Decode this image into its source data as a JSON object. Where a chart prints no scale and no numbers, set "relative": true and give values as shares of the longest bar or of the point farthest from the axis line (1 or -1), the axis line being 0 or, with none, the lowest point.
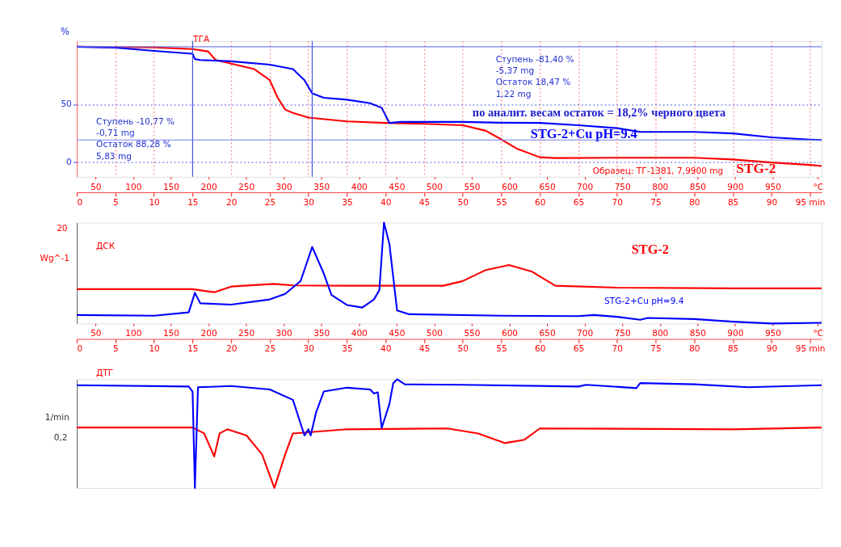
{
  "chart_data": [
    {
      "type": "line",
      "ylabel": "%",
      "xlim": [
        0,
        96.5
      ],
      "xticks": [
        0,
        5,
        10,
        15,
        20,
        25,
        30,
        35,
        40,
        45,
        50,
        55,
        60,
        65,
        70,
        75,
        80,
        85,
        90,
        {
          "value": 95,
          "label": "95 min"
        }
      ],
      "x2lim": [
        25,
        1015
      ],
      "x2ticks": [
        50,
        100,
        150,
        200,
        250,
        300,
        350,
        400,
        450,
        500,
        550,
        600,
        650,
        700,
        750,
        800,
        850,
        900,
        950,
        {
          "value": 1010,
          "label": "°C"
        }
      ],
      "ylim": [
        -13,
        105
      ],
      "yticks": [
        0,
        50
      ],
      "grid": true,
      "annotations": [
        "ТГА",
        "Ступень  -10,77 %\n              -0,71 mg\nОстаток   88,28 %\n              5,83 mg",
        "Ступень  -81,40 %\n              -5,37 mg\nОстаток   18,47 %\n              1,22 mg",
        "по аналит. весам остаток = 18,2% черного цвета",
        "Образец: ТГ-1381, 7,9900 mg"
      ],
      "ref_lines": [
        {
          "axis": "y",
          "value": 100,
          "color": "#7080f0"
        },
        {
          "axis": "x",
          "value": 15,
          "color": "#4050e0"
        },
        {
          "axis": "x",
          "value": 30.5,
          "color": "#4050e0"
        },
        {
          "axis": "y",
          "value": 19,
          "color": "#7080f0"
        }
      ],
      "series": [
        {
          "name": "STG-2",
          "color": "#ff0000",
          "x": [
            0,
            10,
            15,
            17,
            18,
            20,
            23,
            25,
            26,
            27,
            28,
            30,
            35,
            40,
            45,
            50,
            53,
            55,
            57,
            60,
            62,
            70,
            80,
            85,
            90,
            95,
            96.5
          ],
          "values": [
            100,
            99.5,
            98,
            96,
            88.5,
            85.4,
            80.6,
            71,
            56,
            45.4,
            42.5,
            38.5,
            35.2,
            33.8,
            33,
            31.8,
            27,
            19.5,
            11.5,
            4,
            3.3,
            3.6,
            3.6,
            2.1,
            -0.6,
            -2.7,
            -3.6
          ]
        },
        {
          "name": "STG-2+Cu  pH=9.4",
          "color": "#0000ff",
          "x": [
            0,
            5,
            10,
            15,
            15.3,
            16,
            20,
            25,
            28,
            29.5,
            30.5,
            32,
            35,
            38,
            39.5,
            40.5,
            42,
            50,
            55,
            60,
            65,
            70,
            73,
            80,
            85,
            90,
            95,
            96.5
          ],
          "values": [
            100,
            99.2,
            96.4,
            94,
            89.3,
            88.5,
            87.4,
            84.5,
            80.6,
            71,
            59.6,
            55.7,
            54,
            51,
            47,
            33.8,
            34.7,
            34.7,
            34,
            33.8,
            31.8,
            29.3,
            26,
            26,
            24.7,
            21.3,
            19.4,
            19
          ]
        }
      ]
    },
    {
      "type": "line",
      "relative": true,
      "ylabel": "Wg^-1",
      "xlim": [
        0,
        96.5
      ],
      "xticks": [
        0,
        5,
        10,
        15,
        20,
        25,
        30,
        35,
        40,
        45,
        50,
        55,
        60,
        65,
        70,
        75,
        80,
        85,
        90,
        {
          "value": 95,
          "label": "95 min"
        }
      ],
      "x2lim": [
        25,
        1015
      ],
      "x2ticks": [
        50,
        100,
        150,
        200,
        250,
        300,
        350,
        400,
        450,
        500,
        550,
        600,
        650,
        700,
        750,
        800,
        850,
        900,
        950,
        {
          "value": 1010,
          "label": "°C"
        }
      ],
      "annotations": [
        "20",
        "ДСК"
      ],
      "series": [
        {
          "name": "STG-2",
          "color": "#ff0000",
          "x": [
            0,
            15,
            17.8,
            20,
            25.5,
            28,
            35,
            47.5,
            50,
            53,
            56,
            59,
            62,
            70,
            85,
            96.5
          ],
          "values": [
            0.34,
            0.34,
            0.31,
            0.366,
            0.392,
            0.377,
            0.374,
            0.374,
            0.42,
            0.53,
            0.579,
            0.513,
            0.374,
            0.355,
            0.348,
            0.348
          ]
        },
        {
          "name": "STG-2+Cu  pH=9.4",
          "color": "#0000ff",
          "x": [
            0,
            10,
            14.5,
            15.3,
            16,
            20,
            25,
            27,
            29,
            30.5,
            32,
            33,
            35,
            37,
            38.5,
            39.2,
            39.8,
            40.5,
            41.5,
            43,
            55,
            65,
            67,
            70,
            73,
            74,
            80,
            85,
            90,
            96.5
          ],
          "values": [
            0.084,
            0.077,
            0.11,
            0.304,
            0.2,
            0.187,
            0.238,
            0.293,
            0.421,
            0.758,
            0.495,
            0.282,
            0.183,
            0.158,
            0.238,
            0.33,
            1,
            0.788,
            0.128,
            0.092,
            0.077,
            0.073,
            0.084,
            0.066,
            0.037,
            0.055,
            0.044,
            0.018,
            0,
            0.007
          ]
        }
      ]
    },
    {
      "type": "line",
      "relative": true,
      "ylabel": "1/min",
      "xlim": [
        0,
        96.5
      ],
      "tick_labels": false,
      "annotations": [
        "0,2",
        "ДТГ"
      ],
      "series": [
        {
          "color": "#ff0000",
          "x": [
            0,
            15,
            16.5,
            17.8,
            18.5,
            19.5,
            22,
            24,
            25.6,
            27,
            28,
            35,
            48,
            52,
            55.5,
            58,
            60,
            85,
            96.5
          ],
          "values": [
            0.556,
            0.556,
            0.502,
            0.29,
            0.502,
            0.54,
            0.483,
            0.309,
            0,
            0.309,
            0.502,
            0.54,
            0.548,
            0.502,
            0.413,
            0.444,
            0.548,
            0.54,
            0.556
          ]
        },
        {
          "color": "#0000ff",
          "x": [
            0,
            14.5,
            15,
            15.3,
            15.7,
            20,
            25,
            28,
            29.5,
            30,
            30.3,
            31,
            32,
            35,
            38,
            38.5,
            39,
            39.5,
            40.5,
            41,
            41.5,
            42.5,
            50,
            65,
            66,
            72.5,
            73,
            80,
            87,
            96.5
          ],
          "values": [
            0.946,
            0.934,
            0.888,
            0,
            0.927,
            0.938,
            0.907,
            0.811,
            0.483,
            0.54,
            0.483,
            0.695,
            0.888,
            0.923,
            0.907,
            0.869,
            0.88,
            0.552,
            0.772,
            0.965,
            1,
            0.954,
            0.95,
            0.934,
            0.95,
            0.919,
            0.965,
            0.954,
            0.927,
            0.946
          ]
        }
      ]
    }
  ]
}
